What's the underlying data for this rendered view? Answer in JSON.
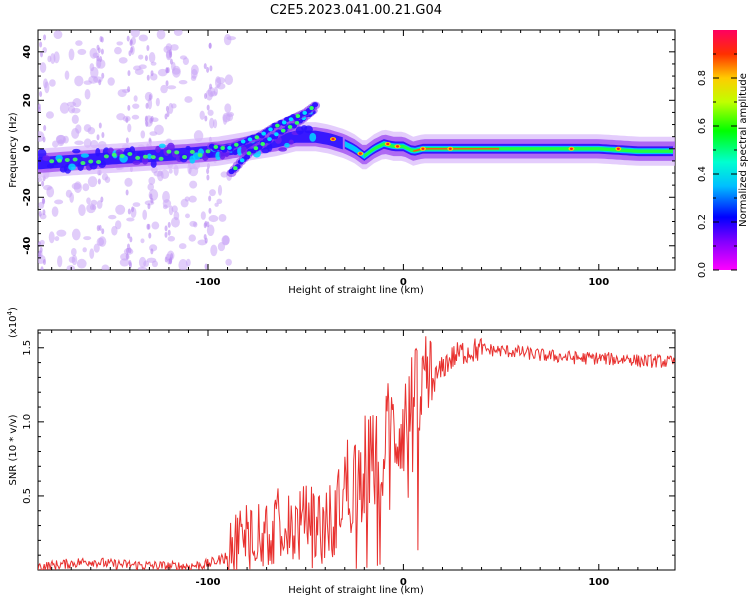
{
  "page": {
    "title": "C2E5.2023.041.00.21.G04"
  },
  "chart_data": [
    {
      "type": "heatmap",
      "title": "C2E5.2023.041.00.21.G04",
      "xlabel": "Height of straight line (km)",
      "ylabel": "Frequency (Hz)",
      "xlim": [
        -187,
        139
      ],
      "ylim": [
        -50,
        49
      ],
      "xticks": [
        -100,
        0,
        100
      ],
      "xtick_labels": [
        "-100",
        "0",
        "100"
      ],
      "yticks": [
        40,
        20,
        0,
        -20,
        -40
      ],
      "ytick_labels": [
        "40",
        "20",
        "0",
        "-20",
        "-40"
      ],
      "colorbar": {
        "label": "Normalized spectral amplitude",
        "range": [
          0,
          1
        ],
        "ticks": [
          0.0,
          0.2,
          0.4,
          0.6,
          0.8
        ],
        "tick_labels": [
          "0.0",
          "0.2",
          "0.4",
          "0.6",
          "0.8"
        ],
        "colormap": "gist_rainbow"
      },
      "ridges": [
        {
          "name_hidden": true,
          "points": [
            [
              -187,
              -6
            ],
            [
              -170,
              -5
            ],
            [
              -150,
              -4
            ],
            [
              -130,
              -3
            ],
            [
              -110,
              -2
            ],
            [
              -95,
              -1
            ],
            [
              -80,
              1
            ],
            [
              -65,
              3
            ],
            [
              -55,
              5
            ],
            [
              -45,
              5
            ],
            [
              -38,
              4
            ],
            [
              -30,
              2
            ],
            [
              -25,
              0
            ],
            [
              -20,
              -3
            ],
            [
              -15,
              0
            ],
            [
              -10,
              2
            ],
            [
              -5,
              1
            ],
            [
              0,
              1
            ],
            [
              5,
              -1
            ],
            [
              10,
              0
            ],
            [
              20,
              0
            ],
            [
              40,
              0
            ],
            [
              60,
              0
            ],
            [
              80,
              0
            ],
            [
              100,
              0
            ],
            [
              120,
              -1
            ],
            [
              139,
              -1
            ]
          ]
        },
        {
          "name_hidden": true,
          "points": [
            [
              -88,
              -10
            ],
            [
              -84,
              -6
            ],
            [
              -78,
              -1
            ],
            [
              -72,
              2
            ],
            [
              -65,
              6
            ],
            [
              -58,
              9
            ],
            [
              -52,
              12
            ],
            [
              -46,
              16
            ]
          ]
        },
        {
          "name_hidden": true,
          "points": [
            [
              -98,
              1
            ],
            [
              -90,
              0
            ],
            [
              -82,
              3
            ],
            [
              -74,
              5
            ],
            [
              -66,
              9
            ],
            [
              -58,
              12
            ],
            [
              -50,
              15
            ],
            [
              -45,
              18
            ]
          ]
        }
      ]
    },
    {
      "type": "line",
      "xlabel": "Height of straight line (km)",
      "ylabel": "SNR (10 * v/v)",
      "y_multiplier_label": "(x10",
      "y_multiplier_exp": "4",
      "y_multiplier_close": ")",
      "xlim": [
        -187,
        139
      ],
      "ylim": [
        0,
        16200
      ],
      "xticks": [
        -100,
        0,
        100
      ],
      "xtick_labels": [
        "-100",
        "0",
        "100"
      ],
      "yticks": [
        5000,
        10000,
        15000
      ],
      "ytick_labels": [
        "0.5",
        "1.0",
        "1.5"
      ],
      "color": "#e8312f",
      "series": [
        {
          "x": [
            -187,
            -180,
            -170,
            -160,
            -150,
            -140,
            -130,
            -120,
            -110,
            -100,
            -92,
            -85,
            -80,
            -75,
            -70,
            -65,
            -60,
            -55,
            -50,
            -45,
            -40,
            -35,
            -30,
            -25,
            -20,
            -15,
            -12,
            -8,
            -5,
            -2,
            0,
            3,
            6,
            10,
            14,
            18,
            22,
            26,
            30,
            35,
            40,
            50,
            60,
            70,
            80,
            90,
            100,
            110,
            115,
            120,
            130,
            139
          ],
          "y": [
            200,
            300,
            450,
            600,
            400,
            350,
            300,
            250,
            250,
            400,
            800,
            1800,
            2500,
            2800,
            2600,
            3000,
            2700,
            2900,
            3200,
            3300,
            3000,
            3800,
            5500,
            6200,
            6900,
            7800,
            8600,
            9000,
            9300,
            9600,
            9900,
            10500,
            11200,
            11800,
            12600,
            13200,
            14000,
            14400,
            14700,
            14800,
            14900,
            14800,
            14700,
            14500,
            14400,
            14300,
            14300,
            14200,
            14300,
            14100,
            14100,
            14000
          ]
        }
      ]
    }
  ]
}
